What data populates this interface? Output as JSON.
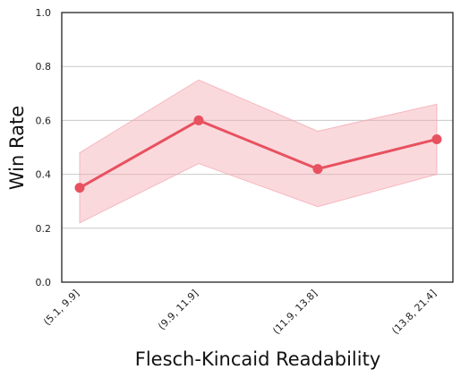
{
  "chart_data": {
    "type": "line",
    "title": "",
    "xlabel": "Flesch-Kincaid Readability",
    "ylabel": "Win Rate",
    "categories": [
      "(5.1, 9.9]",
      "(9.9, 11.9]",
      "(11.9, 13.8]",
      "(13.8, 21.4]"
    ],
    "ylim": [
      0.0,
      1.0
    ],
    "yticks": [
      "0.0",
      "0.2",
      "0.4",
      "0.6",
      "0.8",
      "1.0"
    ],
    "grid": "horizontal",
    "series": [
      {
        "values": [
          0.35,
          0.6,
          0.42,
          0.53
        ],
        "lower": [
          0.22,
          0.44,
          0.28,
          0.4
        ],
        "upper": [
          0.48,
          0.75,
          0.56,
          0.66
        ],
        "color": "#e8515f",
        "band_color": "#f4aab3"
      }
    ]
  }
}
